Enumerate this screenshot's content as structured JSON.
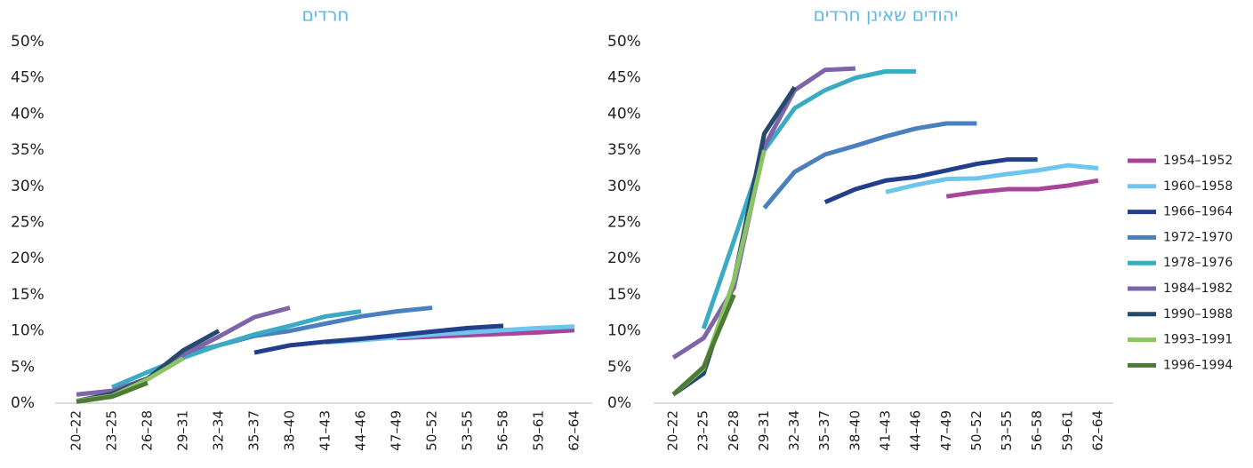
{
  "chart_data": [
    {
      "type": "line",
      "title": "חרדים",
      "categories": [
        "20–22",
        "23–25",
        "26–28",
        "29–31",
        "32–34",
        "35–37",
        "38–40",
        "41–43",
        "44–46",
        "47–49",
        "50–52",
        "53–55",
        "56–58",
        "59–61",
        "62–64"
      ],
      "ylim": [
        0,
        50
      ],
      "yticks": [
        {
          "value": 0,
          "label": "0%"
        },
        {
          "value": 5,
          "label": "5%"
        },
        {
          "value": 10,
          "label": "10%"
        },
        {
          "value": 15,
          "label": "15%"
        },
        {
          "value": 20,
          "label": "20%"
        },
        {
          "value": 25,
          "label": "25%"
        },
        {
          "value": 30,
          "label": "30%"
        },
        {
          "value": 35,
          "label": "35%"
        },
        {
          "value": 40,
          "label": "40%"
        },
        {
          "value": 45,
          "label": "45%"
        },
        {
          "value": 50,
          "label": "50%"
        }
      ],
      "series": [
        {
          "name": "1954–1952",
          "color": "#a8449a",
          "values": [
            null,
            null,
            null,
            null,
            null,
            null,
            null,
            null,
            null,
            9.0,
            9.2,
            9.4,
            9.6,
            9.8,
            10.1
          ]
        },
        {
          "name": "1960–1958",
          "color": "#6ec6ee",
          "values": [
            null,
            null,
            null,
            null,
            null,
            null,
            null,
            8.4,
            8.7,
            9.1,
            9.5,
            9.8,
            10.1,
            10.4,
            10.6
          ]
        },
        {
          "name": "1966–1964",
          "color": "#233e8b",
          "values": [
            null,
            null,
            null,
            null,
            null,
            7.0,
            8.0,
            8.5,
            8.9,
            9.4,
            9.9,
            10.4,
            10.7,
            null,
            null
          ]
        },
        {
          "name": "1972–1970",
          "color": "#4a7fc0",
          "values": [
            null,
            null,
            null,
            6.8,
            8.0,
            9.3,
            10.0,
            11.0,
            12.0,
            12.7,
            13.2,
            null,
            null,
            null,
            null
          ]
        },
        {
          "name": "1978–1976",
          "color": "#3aabc3",
          "values": [
            null,
            2.2,
            4.3,
            6.3,
            8.0,
            9.5,
            10.7,
            12.0,
            12.7,
            null,
            null,
            null,
            null,
            null,
            null
          ]
        },
        {
          "name": "1984–1982",
          "color": "#7e64a8",
          "values": [
            1.2,
            1.7,
            3.4,
            6.7,
            9.2,
            11.9,
            13.2,
            null,
            null,
            null,
            null,
            null,
            null,
            null,
            null
          ]
        },
        {
          "name": "1990–1988",
          "color": "#254a6e",
          "values": [
            0.3,
            1.3,
            3.4,
            7.3,
            10.0,
            null,
            null,
            null,
            null,
            null,
            null,
            null,
            null,
            null,
            null
          ]
        },
        {
          "name": "1993–1991",
          "color": "#8cc465",
          "values": [
            0.3,
            1.0,
            3.3,
            6.2,
            null,
            null,
            null,
            null,
            null,
            null,
            null,
            null,
            null,
            null,
            null
          ]
        },
        {
          "name": "1996–1994",
          "color": "#4f7a35",
          "values": [
            0.2,
            0.9,
            2.8,
            null,
            null,
            null,
            null,
            null,
            null,
            null,
            null,
            null,
            null,
            null,
            null
          ]
        }
      ]
    },
    {
      "type": "line",
      "title": "יהודים שאינן חרדים",
      "categories": [
        "20–22",
        "23–25",
        "26–28",
        "29–31",
        "32–34",
        "35–37",
        "38–40",
        "41–43",
        "44–46",
        "47–49",
        "50–52",
        "53–55",
        "56–58",
        "59–61",
        "62–64"
      ],
      "ylim": [
        0,
        50
      ],
      "yticks": [
        {
          "value": 0,
          "label": "0%"
        },
        {
          "value": 5,
          "label": "5%"
        },
        {
          "value": 10,
          "label": "10%"
        },
        {
          "value": 15,
          "label": "15%"
        },
        {
          "value": 20,
          "label": "20%"
        },
        {
          "value": 25,
          "label": "25%"
        },
        {
          "value": 30,
          "label": "30%"
        },
        {
          "value": 35,
          "label": "35%"
        },
        {
          "value": 40,
          "label": "40%"
        },
        {
          "value": 45,
          "label": "45%"
        },
        {
          "value": 50,
          "label": "50%"
        }
      ],
      "legend": "right",
      "series": [
        {
          "name": "1954–1952",
          "color": "#a8449a",
          "values": [
            null,
            null,
            null,
            null,
            null,
            null,
            null,
            null,
            null,
            28.6,
            29.2,
            29.6,
            29.6,
            30.1,
            30.8
          ]
        },
        {
          "name": "1960–1958",
          "color": "#6ec6ee",
          "values": [
            null,
            null,
            null,
            null,
            null,
            null,
            null,
            29.2,
            30.2,
            31.0,
            31.1,
            31.7,
            32.2,
            32.9,
            32.5
          ]
        },
        {
          "name": "1966–1964",
          "color": "#233e8b",
          "values": [
            null,
            null,
            null,
            null,
            null,
            27.8,
            29.6,
            30.8,
            31.3,
            32.2,
            33.1,
            33.7,
            33.7,
            null,
            null
          ]
        },
        {
          "name": "1972–1970",
          "color": "#4a7fc0",
          "values": [
            null,
            null,
            null,
            27.0,
            32.0,
            34.4,
            35.6,
            36.9,
            38.0,
            38.7,
            38.7,
            null,
            null,
            null,
            null
          ]
        },
        {
          "name": "1978–1976",
          "color": "#3aabc3",
          "values": [
            null,
            10.3,
            22.5,
            35.0,
            40.8,
            43.3,
            45.0,
            45.9,
            45.9,
            null,
            null,
            null,
            null,
            null,
            null
          ]
        },
        {
          "name": "1984–1982",
          "color": "#7e64a8",
          "values": [
            6.3,
            9.0,
            16.0,
            35.5,
            43.3,
            46.1,
            46.3,
            null,
            null,
            null,
            null,
            null,
            null,
            null,
            null
          ]
        },
        {
          "name": "1990–1988",
          "color": "#254a6e",
          "values": [
            1.2,
            4.1,
            17.0,
            37.3,
            43.7,
            null,
            null,
            null,
            null,
            null,
            null,
            null,
            null,
            null,
            null
          ]
        },
        {
          "name": "1993–1991",
          "color": "#8cc465",
          "values": [
            1.2,
            4.8,
            17.0,
            35.0,
            null,
            null,
            null,
            null,
            null,
            null,
            null,
            null,
            null,
            null,
            null
          ]
        },
        {
          "name": "1996–1994",
          "color": "#4f7a35",
          "values": [
            1.2,
            5.0,
            15.0,
            null,
            null,
            null,
            null,
            null,
            null,
            null,
            null,
            null,
            null,
            null,
            null
          ]
        }
      ]
    }
  ]
}
